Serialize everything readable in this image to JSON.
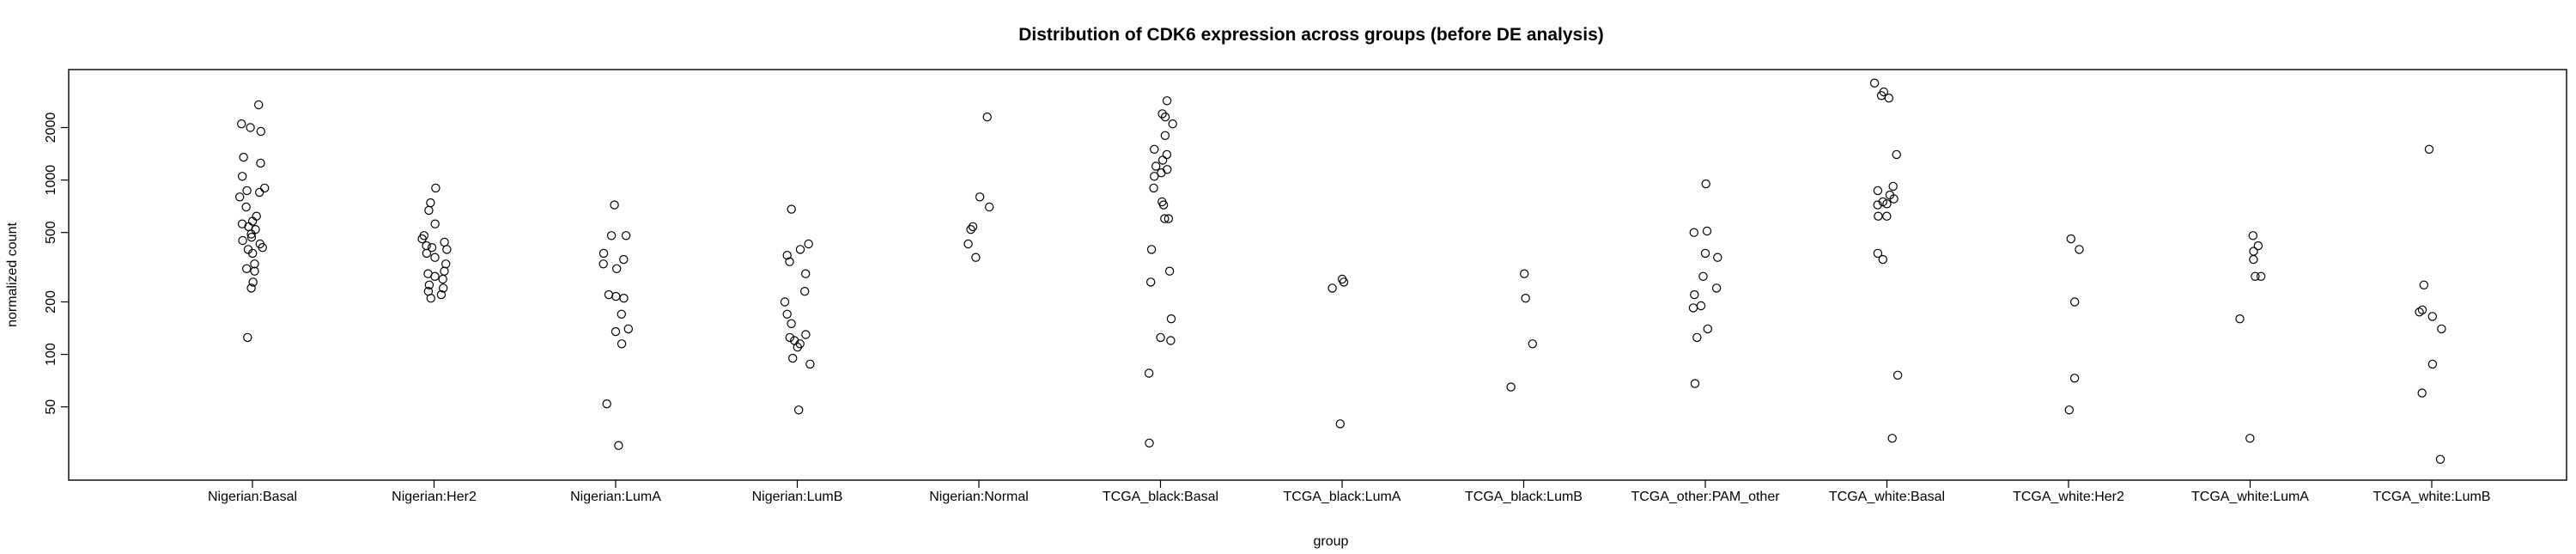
{
  "chart_data": {
    "type": "scatter",
    "title": "Distribution of CDK6 expression across groups (before DE analysis)",
    "xlabel": "group",
    "ylabel": "normalized count",
    "y_scale": "log",
    "ylim": [
      19,
      4300
    ],
    "y_ticks": [
      50,
      100,
      200,
      500,
      1000,
      2000
    ],
    "y_tick_labels": [
      "50",
      "100",
      "200",
      "500",
      "1000",
      "2000"
    ],
    "grid": false,
    "legend": "none",
    "categories": [
      "Nigerian:Basal",
      "Nigerian:Her2",
      "Nigerian:LumA",
      "Nigerian:LumB",
      "Nigerian:Normal",
      "TCGA_black:Basal",
      "TCGA_black:LumA",
      "TCGA_black:LumB",
      "TCGA_other:PAM_other",
      "TCGA_white:Basal",
      "TCGA_white:Her2",
      "TCGA_white:LumA",
      "TCGA_white:LumB"
    ],
    "points": [
      [
        2700,
        2100,
        2000,
        1900,
        1350,
        1250,
        1050,
        900,
        870,
        850,
        800,
        700,
        620,
        580,
        560,
        540,
        520,
        490,
        470,
        450,
        430,
        410,
        400,
        380,
        330,
        310,
        300,
        260,
        240,
        125
      ],
      [
        900,
        740,
        670,
        560,
        480,
        460,
        440,
        420,
        410,
        400,
        380,
        360,
        330,
        300,
        290,
        280,
        270,
        250,
        240,
        230,
        220,
        210
      ],
      [
        720,
        480,
        480,
        380,
        350,
        330,
        310,
        220,
        215,
        210,
        170,
        140,
        135,
        115,
        52,
        30
      ],
      [
        680,
        430,
        400,
        370,
        340,
        290,
        230,
        200,
        170,
        150,
        130,
        125,
        120,
        115,
        110,
        95,
        88,
        48
      ],
      [
        2300,
        800,
        700,
        540,
        520,
        430,
        360
      ],
      [
        2850,
        2400,
        2300,
        2100,
        1800,
        1500,
        1400,
        1300,
        1200,
        1150,
        1100,
        1050,
        900,
        750,
        720,
        600,
        600,
        400,
        300,
        260,
        160,
        125,
        120,
        78,
        31
      ],
      [
        270,
        260,
        240,
        40
      ],
      [
        290,
        210,
        115,
        65
      ],
      [
        950,
        510,
        500,
        380,
        360,
        280,
        240,
        220,
        190,
        185,
        140,
        125,
        68
      ],
      [
        3600,
        3200,
        3050,
        2950,
        1400,
        920,
        870,
        820,
        780,
        750,
        730,
        720,
        620,
        620,
        380,
        350,
        76,
        33
      ],
      [
        460,
        400,
        200,
        73,
        48
      ],
      [
        480,
        420,
        390,
        350,
        280,
        280,
        160,
        33
      ],
      [
        1500,
        250,
        180,
        175,
        165,
        140,
        88,
        60,
        25
      ]
    ]
  }
}
